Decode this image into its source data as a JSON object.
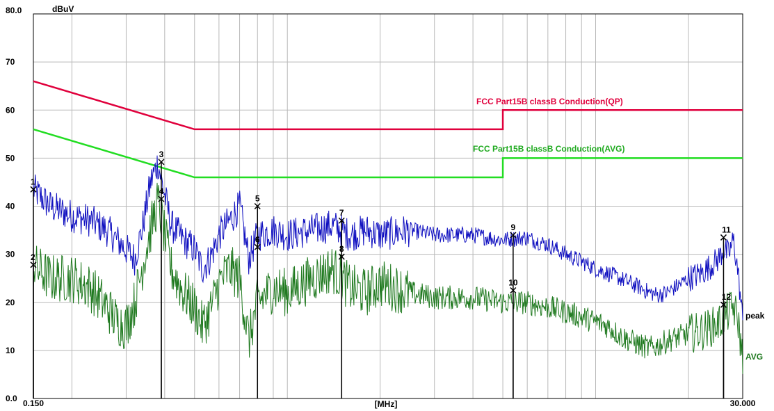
{
  "chart_data": {
    "type": "line",
    "ylabel": "dBuV",
    "xlabel": "[MHz]",
    "x_scale": "log",
    "xlim": [
      0.15,
      30.0
    ],
    "ylim": [
      0.0,
      80.0
    ],
    "x_tick_labels": {
      "min": "0.150",
      "max": "30.000"
    },
    "y_ticks": [
      0,
      10,
      20,
      30,
      40,
      50,
      60,
      70,
      80
    ],
    "y_tick_labels": [
      "0.0",
      "10",
      "20",
      "30",
      "40",
      "50",
      "60",
      "70",
      "80.0"
    ],
    "grid": true,
    "limit_lines": [
      {
        "name": "FCC Part15B classB Conduction(QP)",
        "color": "#e0003c",
        "points": [
          [
            0.15,
            66
          ],
          [
            0.5,
            56
          ],
          [
            5.0,
            56
          ],
          [
            5.0,
            60
          ],
          [
            30.0,
            60
          ]
        ]
      },
      {
        "name": "FCC Part15B classB Conduction(AVG)",
        "color": "#22dd22",
        "points": [
          [
            0.15,
            56
          ],
          [
            0.5,
            46
          ],
          [
            5.0,
            46
          ],
          [
            5.0,
            50
          ],
          [
            30.0,
            50
          ]
        ]
      }
    ],
    "series": [
      {
        "name": "peak",
        "color": "#1010c0",
        "x": [
          0.15,
          0.17,
          0.2,
          0.23,
          0.26,
          0.28,
          0.3,
          0.32,
          0.34,
          0.36,
          0.38,
          0.42,
          0.46,
          0.5,
          0.53,
          0.56,
          0.6,
          0.65,
          0.7,
          0.75,
          0.8,
          0.9,
          1.0,
          1.2,
          1.4,
          1.6,
          1.8,
          2.0,
          2.5,
          3.0,
          4.0,
          5.0,
          5.9,
          7.0,
          8.0,
          9.0,
          10.0,
          11.0,
          12.0,
          13.0,
          14.0,
          15.0,
          16.0,
          17.0,
          18.0,
          19.0,
          20.0,
          22.0,
          24.0,
          25.0,
          26.0,
          27.0,
          28.0,
          29.0,
          30.0
        ],
        "values": [
          43.5,
          40,
          38,
          37,
          35,
          33,
          31,
          29,
          36,
          45,
          49,
          36,
          33,
          31,
          27,
          29,
          34,
          37,
          40,
          29,
          34,
          35,
          34,
          35,
          36,
          34,
          35,
          34,
          35,
          34,
          34,
          33,
          33.5,
          32,
          30,
          28.5,
          27,
          26,
          25,
          24,
          23,
          22,
          21.5,
          22,
          23,
          24,
          25,
          26,
          28,
          29,
          31,
          30,
          33,
          26,
          16
        ]
      },
      {
        "name": "AVG",
        "color": "#207a20",
        "x": [
          0.15,
          0.17,
          0.2,
          0.23,
          0.26,
          0.28,
          0.3,
          0.32,
          0.34,
          0.36,
          0.38,
          0.42,
          0.46,
          0.5,
          0.53,
          0.56,
          0.6,
          0.65,
          0.7,
          0.75,
          0.8,
          0.9,
          1.0,
          1.2,
          1.4,
          1.6,
          1.8,
          2.0,
          2.5,
          3.0,
          4.0,
          5.0,
          5.9,
          7.0,
          8.0,
          9.0,
          10.0,
          11.0,
          12.0,
          13.0,
          14.0,
          15.0,
          16.0,
          17.0,
          18.0,
          19.0,
          20.0,
          22.0,
          24.0,
          25.0,
          26.0,
          27.0,
          28.0,
          29.0,
          30.0
        ],
        "values": [
          27.5,
          25,
          25,
          23,
          19,
          16,
          15,
          20,
          28,
          35,
          41,
          27,
          22,
          19,
          15,
          18,
          24,
          27,
          25,
          12,
          20,
          23,
          22,
          25,
          27,
          23,
          22,
          24,
          22,
          21,
          21,
          20,
          20,
          19,
          18,
          17,
          16,
          15,
          13,
          12,
          11,
          10.5,
          11,
          12,
          12.5,
          13,
          13.5,
          14,
          15,
          15.5,
          17,
          18,
          19,
          16,
          8
        ]
      }
    ],
    "markers": [
      {
        "label": "1",
        "x": 0.15,
        "y": 43.5
      },
      {
        "label": "2",
        "x": 0.15,
        "y": 27.8
      },
      {
        "label": "3",
        "x": 0.39,
        "y": 49.2
      },
      {
        "label": "4",
        "x": 0.39,
        "y": 41.5
      },
      {
        "label": "5",
        "x": 0.8,
        "y": 40.0
      },
      {
        "label": "6",
        "x": 0.8,
        "y": 31.5
      },
      {
        "label": "7",
        "x": 1.5,
        "y": 37.0
      },
      {
        "label": "8",
        "x": 1.5,
        "y": 29.5
      },
      {
        "label": "9",
        "x": 5.4,
        "y": 34.0
      },
      {
        "label": "10",
        "x": 5.4,
        "y": 22.5
      },
      {
        "label": "11",
        "x": 26.0,
        "y": 33.5
      },
      {
        "label": "12",
        "x": 26.0,
        "y": 19.5
      }
    ]
  }
}
